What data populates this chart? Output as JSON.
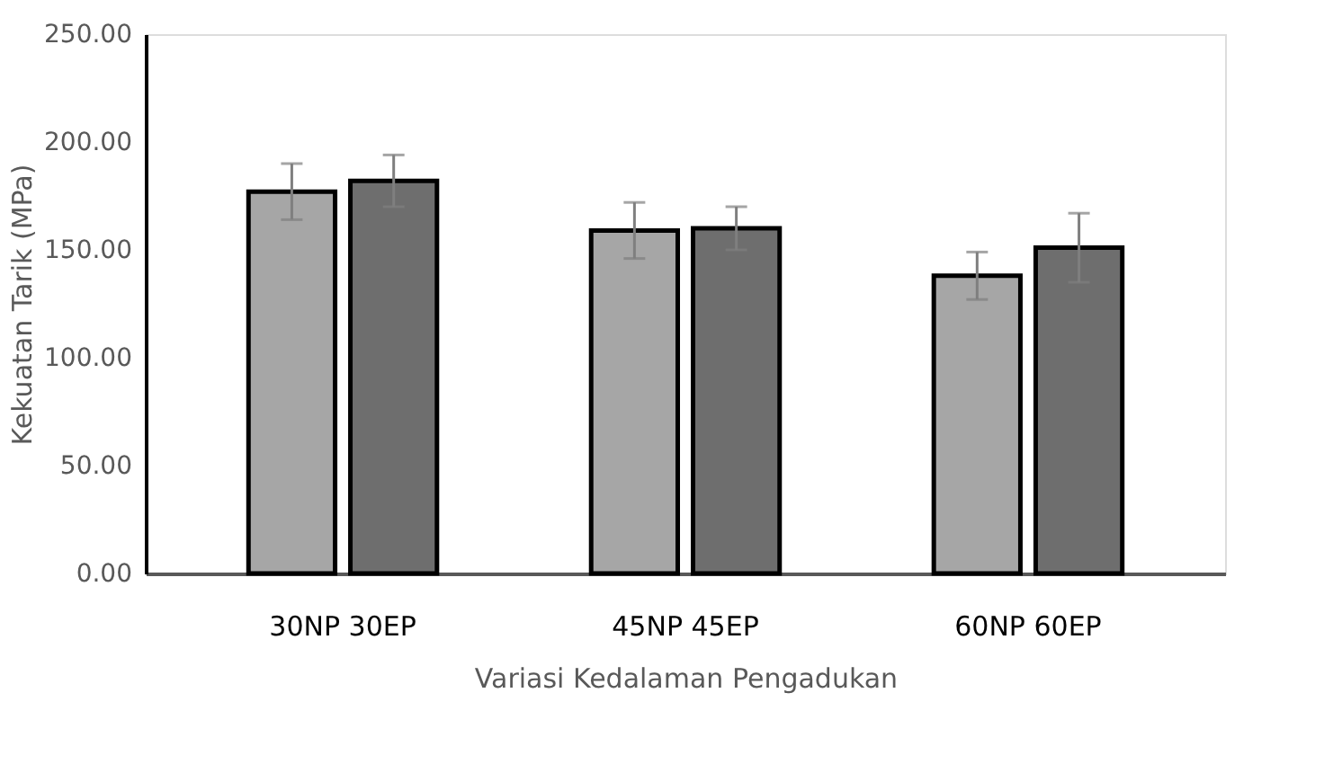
{
  "chart_data": {
    "type": "bar",
    "xlabel": "Variasi Kedalaman Pengadukan",
    "ylabel": "Kekuatan Tarik  (MPa)",
    "categories": [
      "30NP 30EP",
      "45NP 45EP",
      "60NP 60EP"
    ],
    "series": [
      {
        "color": "#a6a6a6",
        "values": [
          177,
          159,
          138
        ],
        "errors": [
          13,
          13,
          11
        ]
      },
      {
        "color": "#6e6e6e",
        "values": [
          182,
          160,
          151
        ],
        "errors": [
          12,
          10,
          16
        ]
      }
    ],
    "ylim": [
      0,
      250
    ],
    "yticks": [
      {
        "value": 0,
        "label": "0.00"
      },
      {
        "value": 50,
        "label": "50.00"
      },
      {
        "value": 100,
        "label": "100.00"
      },
      {
        "value": 150,
        "label": "150.00"
      },
      {
        "value": 200,
        "label": "200.00"
      },
      {
        "value": 250,
        "label": "250.00"
      }
    ],
    "grid": false,
    "legend": false
  }
}
